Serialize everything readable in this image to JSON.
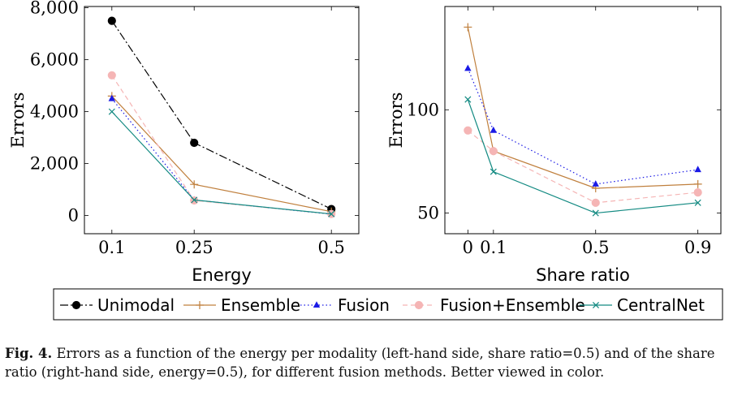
{
  "series_styles": {
    "Unimodal": {
      "color": "#000000",
      "marker": "circle",
      "dash": "10 3 2 3"
    },
    "Ensemble": {
      "color": "#c0803e",
      "marker": "plus",
      "dash": ""
    },
    "Fusion": {
      "color": "#1a1ae6",
      "marker": "triangle",
      "dash": "1.5 3"
    },
    "Fusion+Ensemble": {
      "color": "#f5b5b5",
      "marker": "circle",
      "dash": "6 4"
    },
    "CentralNet": {
      "color": "#138a82",
      "marker": "x",
      "dash": ""
    }
  },
  "legend": [
    "Unimodal",
    "Ensemble",
    "Fusion",
    "Fusion+Ensemble",
    "CentralNet"
  ],
  "chart_data": [
    {
      "type": "line",
      "xlabel": "Energy",
      "ylabel": "Errors",
      "x": [
        0.1,
        0.25,
        0.5
      ],
      "x_tick_labels": [
        "0.1",
        "0.25",
        "0.5"
      ],
      "xlim": [
        0.05,
        0.55
      ],
      "ylim": [
        -700,
        8050
      ],
      "y_ticks": [
        0,
        2000,
        4000,
        6000,
        8000
      ],
      "y_tick_labels": [
        "0",
        "2,000",
        "4,000",
        "6,000",
        "8,000"
      ],
      "series": [
        {
          "name": "Unimodal",
          "values": [
            7500,
            2800,
            250
          ]
        },
        {
          "name": "Ensemble",
          "values": [
            4600,
            1200,
            150
          ]
        },
        {
          "name": "Fusion",
          "values": [
            4500,
            600,
            50
          ]
        },
        {
          "name": "Fusion+Ensemble",
          "values": [
            5400,
            580,
            60
          ]
        },
        {
          "name": "CentralNet",
          "values": [
            4000,
            600,
            60
          ]
        }
      ]
    },
    {
      "type": "line",
      "xlabel": "Share ratio",
      "ylabel": "Errors",
      "x": [
        0,
        0.1,
        0.5,
        0.9
      ],
      "x_tick_labels": [
        "0",
        "0.1",
        "0.5",
        "0.9"
      ],
      "xlim": [
        -0.09,
        0.99
      ],
      "ylim": [
        40,
        150
      ],
      "y_ticks": [
        50,
        100
      ],
      "y_tick_labels": [
        "50",
        "100"
      ],
      "series": [
        {
          "name": "Ensemble",
          "values": [
            140,
            80,
            62,
            64
          ]
        },
        {
          "name": "Fusion",
          "values": [
            120,
            90,
            64,
            71
          ]
        },
        {
          "name": "Fusion+Ensemble",
          "values": [
            90,
            80,
            55,
            60
          ]
        },
        {
          "name": "CentralNet",
          "values": [
            105,
            70,
            50,
            55
          ]
        }
      ]
    }
  ],
  "caption": {
    "label": "Fig. 4.",
    "text": " Errors as a function of the energy per modality (left-hand side, share ratio=0.5) and of the share ratio (right-hand side, energy=0.5), for different fusion methods. Better viewed in color."
  }
}
